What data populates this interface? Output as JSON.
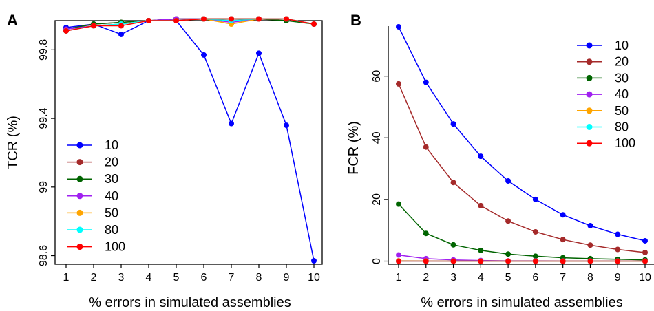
{
  "chart_data": [
    {
      "panel": "A",
      "type": "line",
      "xlabel": "% errors in simulated assemblies",
      "ylabel": "TCR (%)",
      "x": [
        1,
        2,
        3,
        4,
        5,
        6,
        7,
        8,
        9,
        10
      ],
      "xlim": [
        1,
        10
      ],
      "ylim": [
        98.55,
        99.97
      ],
      "yticks": [
        98.6,
        99,
        99.4,
        99.8
      ],
      "ytick_labels": [
        "98.6",
        "99",
        "99.4",
        "99.8"
      ],
      "grid": false,
      "legend_position": "bottom-left",
      "series": [
        {
          "name": "10",
          "color": "#0000FF",
          "values": [
            99.93,
            99.95,
            99.89,
            99.97,
            99.97,
            99.77,
            99.37,
            99.78,
            99.36,
            98.57
          ]
        },
        {
          "name": "20",
          "color": "#A52A2A",
          "values": [
            99.92,
            99.95,
            99.96,
            99.97,
            99.98,
            99.98,
            99.98,
            99.98,
            99.98,
            99.95
          ]
        },
        {
          "name": "30",
          "color": "#006400",
          "values": [
            99.92,
            99.95,
            99.96,
            99.97,
            99.98,
            99.98,
            99.98,
            99.98,
            99.97,
            99.95
          ]
        },
        {
          "name": "40",
          "color": "#A020F0",
          "values": [
            99.92,
            99.94,
            99.95,
            99.97,
            99.98,
            99.98,
            99.96,
            99.98,
            99.98,
            99.95
          ]
        },
        {
          "name": "50",
          "color": "#FFA500",
          "values": [
            99.91,
            99.94,
            99.95,
            99.97,
            99.97,
            99.98,
            99.95,
            99.98,
            99.98,
            99.95
          ]
        },
        {
          "name": "80",
          "color": "#00FFFF",
          "values": [
            99.91,
            99.94,
            99.95,
            99.97,
            99.97,
            99.98,
            99.97,
            99.98,
            99.98,
            99.95
          ]
        },
        {
          "name": "100",
          "color": "#FF0000",
          "values": [
            99.91,
            99.94,
            99.94,
            99.97,
            99.97,
            99.98,
            99.98,
            99.98,
            99.98,
            99.95
          ]
        }
      ]
    },
    {
      "panel": "B",
      "type": "line",
      "xlabel": "% errors in simulated assemblies",
      "ylabel": "FCR (%)",
      "x": [
        1,
        2,
        3,
        4,
        5,
        6,
        7,
        8,
        9,
        10
      ],
      "xlim": [
        1,
        10
      ],
      "ylim": [
        -1,
        78
      ],
      "yticks": [
        0,
        20,
        40,
        60
      ],
      "ytick_labels": [
        "0",
        "20",
        "40",
        "60"
      ],
      "grid": false,
      "legend_position": "top-right",
      "series": [
        {
          "name": "10",
          "color": "#0000FF",
          "values": [
            76,
            58,
            44.5,
            34,
            26,
            20,
            15,
            11.5,
            8.7,
            6.6
          ]
        },
        {
          "name": "20",
          "color": "#A52A2A",
          "values": [
            57.5,
            37,
            25.5,
            18,
            13,
            9.5,
            7,
            5.2,
            3.8,
            2.8
          ]
        },
        {
          "name": "30",
          "color": "#006400",
          "values": [
            18.5,
            9,
            5.3,
            3.5,
            2.3,
            1.6,
            1.1,
            0.8,
            0.6,
            0.4
          ]
        },
        {
          "name": "40",
          "color": "#A020F0",
          "values": [
            2,
            0.8,
            0.4,
            0.2,
            0.1,
            0.1,
            0.05,
            0.05,
            0.05,
            0.05
          ]
        },
        {
          "name": "50",
          "color": "#FFA500",
          "values": [
            0.1,
            0.05,
            0,
            0,
            0,
            0,
            0,
            0,
            0,
            0
          ]
        },
        {
          "name": "80",
          "color": "#00FFFF",
          "values": [
            0,
            0,
            0,
            0,
            0,
            0,
            0,
            0,
            0,
            0
          ]
        },
        {
          "name": "100",
          "color": "#FF0000",
          "values": [
            0,
            0,
            0,
            0,
            0,
            0,
            0,
            0,
            0,
            0
          ]
        }
      ]
    }
  ]
}
